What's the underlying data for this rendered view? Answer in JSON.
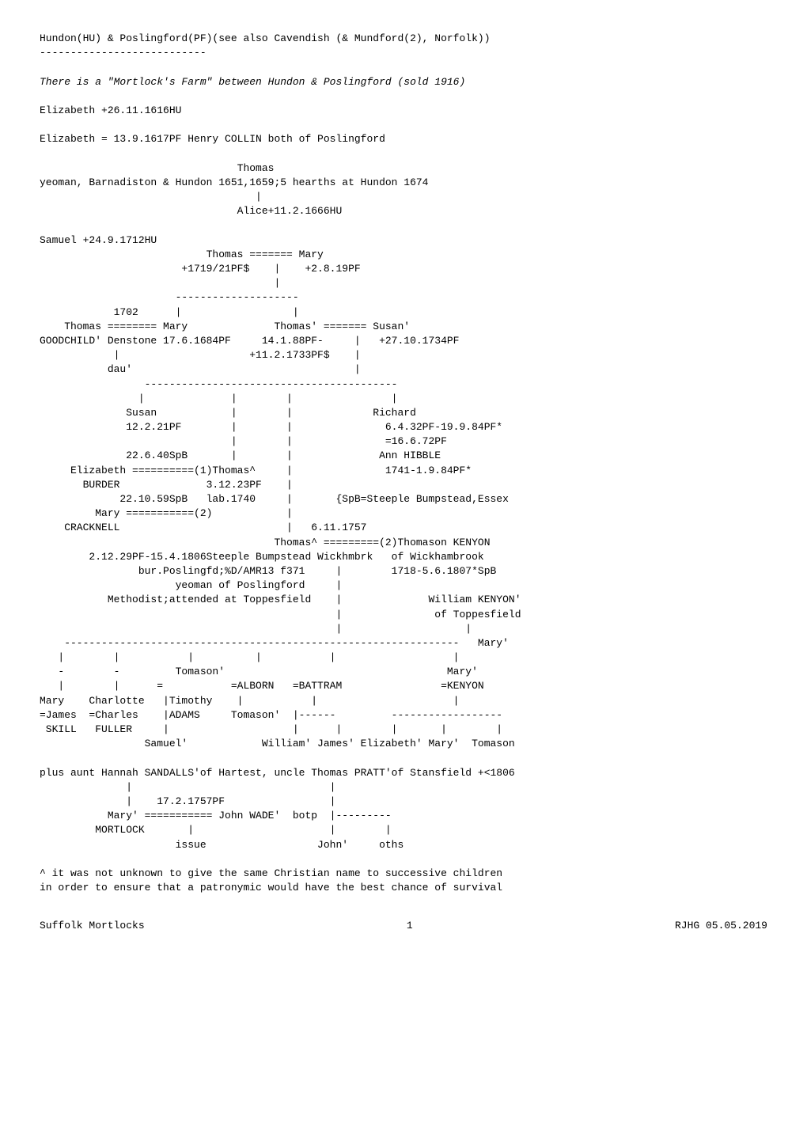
{
  "header_line1": "Hundon(HU) & Poslingford(PF)(see also Cavendish (& Mundford(2), Norfolk))",
  "header_rule": "---------------------------",
  "italic_note": "There is a \"Mortlock's Farm\" between Hundon & Poslingford (sold 1916)",
  "line_elizabeth1": "Elizabeth +26.11.1616HU",
  "line_elizabeth2": "Elizabeth = 13.9.1617PF Henry COLLIN both of Poslingford",
  "tree_block1": "                                Thomas\nyeoman, Barnadiston & Hundon 1651,1659;5 hearths at Hundon 1674\n                                   |\n                                Alice+11.2.1666HU",
  "line_samuel": "Samuel +24.9.1712HU",
  "tree_block2": "                           Thomas ======= Mary\n                       +1719/21PF$    |    +2.8.19PF\n                                      |\n                      --------------------\n            1702      |                  |\n    Thomas ======== Mary              Thomas' ======= Susan'\nGOODCHILD' Denstone 17.6.1684PF     14.1.88PF-     |   +27.10.1734PF\n            |                     +11.2.1733PF$    |\n           dau'                                    |\n                 -----------------------------------------\n                |              |        |                |\n              Susan            |        |             Richard\n              12.2.21PF        |        |               6.4.32PF-19.9.84PF*\n                               |        |               =16.6.72PF\n              22.6.40SpB       |        |              Ann HIBBLE\n     Elizabeth ==========(1)Thomas^     |               1741-1.9.84PF*\n       BURDER              3.12.23PF    |\n             22.10.59SpB   lab.1740     |       {SpB=Steeple Bumpstead,Essex\n         Mary ===========(2)            |\n    CRACKNELL                           |   6.11.1757\n                                      Thomas^ =========(2)Thomason KENYON\n        2.12.29PF-15.4.1806Steeple Bumpstead Wickhmbrk   of Wickhambrook\n                bur.Poslingfd;%D/AMR13 f371     |        1718-5.6.1807*SpB\n                      yeoman of Poslingford     |\n           Methodist;attended at Toppesfield    |              William KENYON'\n                                                |               of Toppesfield\n                                                |                    |\n    ----------------------------------------------------------------   Mary'\n   |        |           |          |           |                   |\n   -        -         Tomason'                                    Mary'\n   |        |      =           =ALBORN   =BATTRAM                =KENYON\nMary    Charlotte   |Timothy    |           |                      |\n=James  =Charles    |ADAMS     Tomason'  |------         ------------------\n SKILL   FULLER     |                    |      |        |       |        |\n                 Samuel'            William' James' Elizabeth' Mary'  Tomason",
  "line_aunt": "plus aunt Hannah SANDALLS'of Hartest, uncle Thomas PRATT'of Stansfield +<1806",
  "tree_block3": "              |                                |\n              |    17.2.1757PF                 |\n           Mary' =========== John WADE'  botp  |---------\n         MORTLOCK       |                      |        |\n                      issue                  John'     oths",
  "footnote": "^ it was not unknown to give the same Christian name to successive children\nin order to ensure that a patronymic would have the best chance of survival",
  "footer_left": "Suffolk Mortlocks",
  "footer_center": "1",
  "footer_right": "RJHG 05.05.2019"
}
